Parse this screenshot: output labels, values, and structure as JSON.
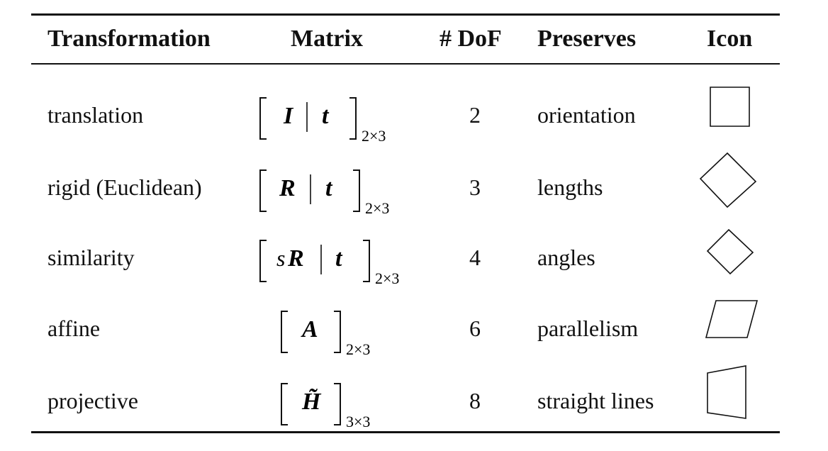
{
  "header": {
    "transformation": "Transformation",
    "matrix": "Matrix",
    "dof": "# DoF",
    "preserves": "Preserves",
    "icon": "Icon"
  },
  "rows": [
    {
      "name": "translation",
      "matrix_main": "I",
      "matrix_extra": "t",
      "subscript": "2×3",
      "dof": "2",
      "preserves": "orientation",
      "icon": "square-icon"
    },
    {
      "name": "rigid (Euclidean)",
      "matrix_main": "R",
      "matrix_extra": "t",
      "subscript": "2×3",
      "dof": "3",
      "preserves": "lengths",
      "icon": "rotated-square-icon"
    },
    {
      "name": "similarity",
      "matrix_scalar": "s",
      "matrix_main": "R",
      "matrix_extra": "t",
      "subscript": "2×3",
      "dof": "4",
      "preserves": "angles",
      "icon": "small-rotated-square-icon"
    },
    {
      "name": "affine",
      "matrix_main": "A",
      "subscript": "2×3",
      "dof": "6",
      "preserves": "parallelism",
      "icon": "parallelogram-icon"
    },
    {
      "name": "projective",
      "matrix_main": "H̃",
      "subscript": "3×3",
      "dof": "8",
      "preserves": "straight lines",
      "icon": "quadrilateral-icon"
    }
  ]
}
